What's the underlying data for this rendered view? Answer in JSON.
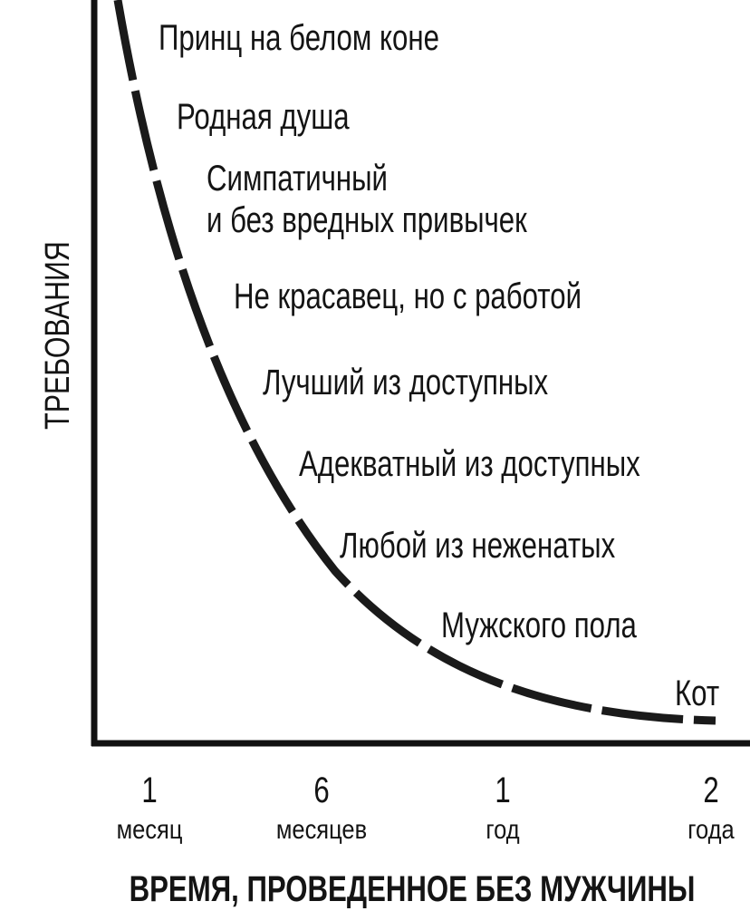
{
  "axes": {
    "y_label": "ТРЕБОВАНИЯ",
    "x_label": "ВРЕМЯ, ПРОВЕДЕННОЕ БЕЗ МУЖЧИНЫ"
  },
  "curve_labels": [
    "Принц на белом коне",
    "Родная душа",
    "Симпатичный",
    "и без вредных привычек",
    "Не красавец, но с работой",
    "Лучший из доступных",
    "Адекватный из доступных",
    "Любой из неженатых",
    "Мужского пола",
    "Кот"
  ],
  "x_ticks": [
    {
      "number": "1",
      "unit": "месяц"
    },
    {
      "number": "6",
      "unit": "месяцев"
    },
    {
      "number": "1",
      "unit": "год"
    },
    {
      "number": "2",
      "unit": "года"
    }
  ]
}
